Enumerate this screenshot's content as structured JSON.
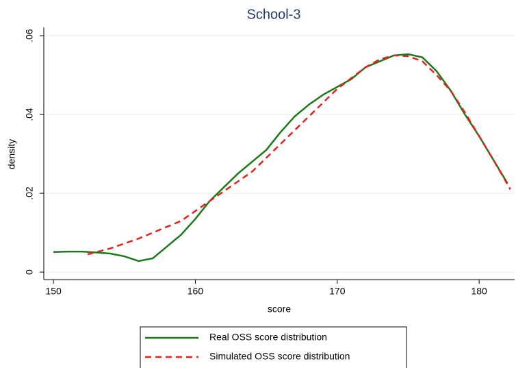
{
  "chart_data": {
    "type": "line",
    "title": "School-3",
    "x_label": "score",
    "y_label": "density",
    "xlim": [
      149.32,
      182.5
    ],
    "xticks": [
      150,
      160,
      170,
      180
    ],
    "ylim": [
      -0.0019,
      0.0621
    ],
    "yticks": [
      0,
      {
        "value": 0.02,
        "label": ".02"
      },
      {
        "value": 0.04,
        "label": ".04"
      },
      {
        "value": 0.06,
        "label": ".06"
      }
    ],
    "grid": true,
    "series": [
      {
        "name": "Real OSS score distribution",
        "color": "#1a7a1a",
        "dash": "solid",
        "x": [
          150,
          151,
          152,
          153,
          154,
          155,
          156,
          157,
          158,
          159,
          160,
          161,
          162,
          163,
          164,
          165,
          166,
          167,
          168,
          169,
          170,
          171,
          172,
          173,
          174,
          175,
          176,
          177,
          178,
          179,
          180,
          181,
          182
        ],
        "values": [
          0.0051,
          0.0052,
          0.0052,
          0.005,
          0.0047,
          0.004,
          0.0028,
          0.0035,
          0.0065,
          0.0095,
          0.0135,
          0.018,
          0.0215,
          0.025,
          0.028,
          0.031,
          0.0355,
          0.0395,
          0.0425,
          0.045,
          0.047,
          0.049,
          0.052,
          0.0535,
          0.055,
          0.0553,
          0.0545,
          0.051,
          0.046,
          0.04,
          0.0345,
          0.0285,
          0.0225
        ]
      },
      {
        "name": "Simulated OSS score distribution",
        "color": "#e8201a",
        "dash": "dashed",
        "x": [
          152.4,
          154,
          156,
          158,
          159,
          160,
          162,
          164,
          166,
          168,
          170,
          172,
          173,
          174,
          175,
          176,
          177,
          178,
          179,
          180,
          181,
          182.2
        ],
        "values": [
          0.0045,
          0.006,
          0.0085,
          0.0115,
          0.013,
          0.0155,
          0.0205,
          0.0255,
          0.0325,
          0.0395,
          0.0465,
          0.052,
          0.054,
          0.055,
          0.0548,
          0.0535,
          0.05,
          0.046,
          0.0405,
          0.0345,
          0.0285,
          0.021
        ]
      }
    ]
  }
}
